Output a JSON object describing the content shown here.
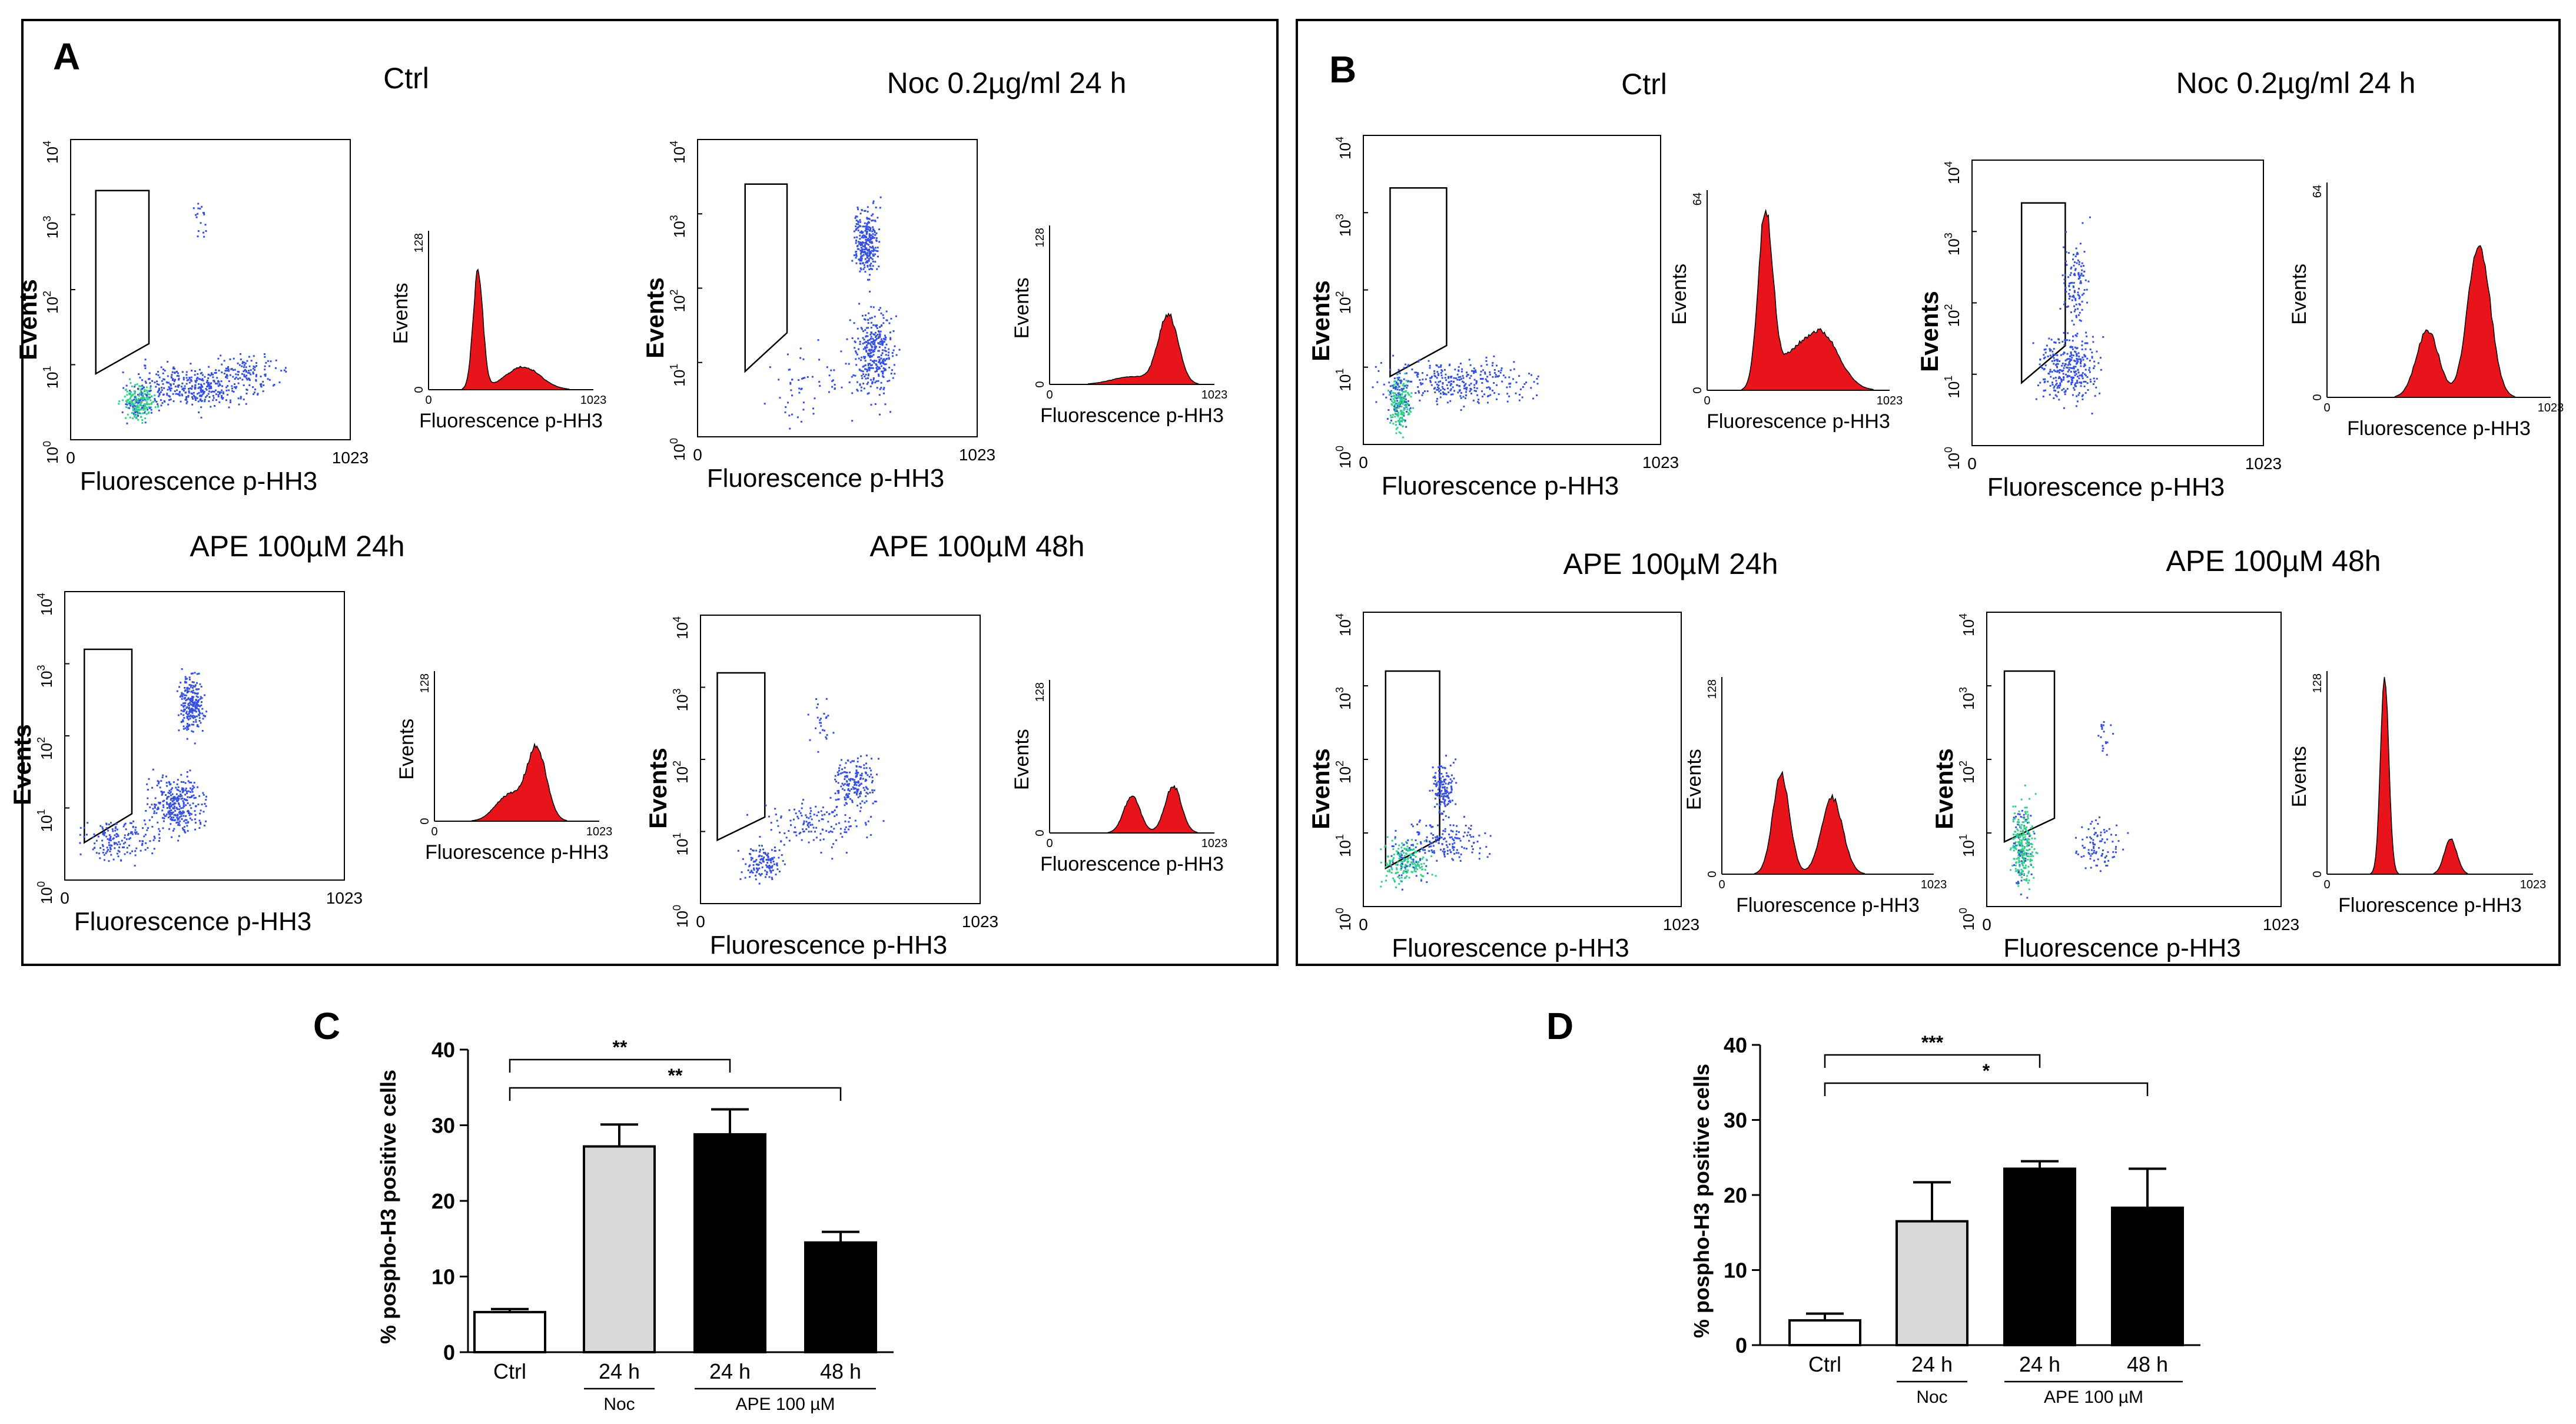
{
  "panels": [
    {
      "letter": "A",
      "subplots": [
        {
          "title": "Ctrl",
          "dot_ylabel": "Events",
          "dot_xlabel": "Fluorescence p-HH3",
          "x_min": "0",
          "x_max": "1023",
          "y_base": "10",
          "y_exps": [
            "0",
            "1",
            "2",
            "3",
            "4"
          ],
          "hist_ylabel": "Events",
          "hist_xlabel": "Fluorescence p-HH3",
          "hist_ymax": "128",
          "hist_xmin": "0",
          "hist_xmax": "1023"
        },
        {
          "title": "Noc  0.2µg/ml 24 h",
          "dot_ylabel": "Events",
          "dot_xlabel": "Fluorescence p-HH3",
          "x_min": "0",
          "x_max": "1023",
          "y_base": "10",
          "y_exps": [
            "0",
            "1",
            "2",
            "3",
            "4"
          ],
          "hist_ylabel": "Events",
          "hist_xlabel": "Fluorescence p-HH3",
          "hist_ymax": "128",
          "hist_xmin": "0",
          "hist_xmax": "1023"
        },
        {
          "title": "APE 100µM 24h",
          "dot_ylabel": "Events",
          "dot_xlabel": "Fluorescence p-HH3",
          "x_min": "0",
          "x_max": "1023",
          "y_base": "10",
          "y_exps": [
            "0",
            "1",
            "2",
            "3",
            "4"
          ],
          "hist_ylabel": "Events",
          "hist_xlabel": "Fluorescence p-HH3",
          "hist_ymax": "128",
          "hist_xmin": "0",
          "hist_xmax": "1023"
        },
        {
          "title": "APE 100µM 48h",
          "dot_ylabel": "Events",
          "dot_xlabel": "Fluorescence p-HH3",
          "x_min": "0",
          "x_max": "1023",
          "y_base": "10",
          "y_exps": [
            "0",
            "1",
            "2",
            "3",
            "4"
          ],
          "hist_ylabel": "Events",
          "hist_xlabel": "Fluorescence p-HH3",
          "hist_ymax": "128",
          "hist_xmin": "0",
          "hist_xmax": "1023"
        }
      ]
    },
    {
      "letter": "B",
      "subplots": [
        {
          "title": "Ctrl",
          "dot_ylabel": "Events",
          "dot_xlabel": "Fluorescence p-HH3",
          "x_min": "0",
          "x_max": "1023",
          "y_base": "10",
          "y_exps": [
            "0",
            "1",
            "2",
            "3",
            "4"
          ],
          "hist_ylabel": "Events",
          "hist_xlabel": "Fluorescence p-HH3",
          "hist_ymax": "64",
          "hist_xmin": "0",
          "hist_xmax": "1023"
        },
        {
          "title": "Noc  0.2µg/ml 24 h",
          "dot_ylabel": "Events",
          "dot_xlabel": "Fluorescence p-HH3",
          "x_min": "0",
          "x_max": "1023",
          "y_base": "10",
          "y_exps": [
            "0",
            "1",
            "2",
            "3",
            "4"
          ],
          "hist_ylabel": "Events",
          "hist_xlabel": "Fluorescence p-HH3",
          "hist_ymax": "64",
          "hist_xmin": "0",
          "hist_xmax": "1023"
        },
        {
          "title": "APE 100µM 24h",
          "dot_ylabel": "Events",
          "dot_xlabel": "Fluorescence p-HH3",
          "x_min": "0",
          "x_max": "1023",
          "y_base": "10",
          "y_exps": [
            "0",
            "1",
            "2",
            "3",
            "4"
          ],
          "hist_ylabel": "Events",
          "hist_xlabel": "Fluorescence p-HH3",
          "hist_ymax": "128",
          "hist_xmin": "0",
          "hist_xmax": "1023"
        },
        {
          "title": "APE 100µM 48h",
          "dot_ylabel": "Events",
          "dot_xlabel": "Fluorescence p-HH3",
          "x_min": "0",
          "x_max": "1023",
          "y_base": "10",
          "y_exps": [
            "0",
            "1",
            "2",
            "3",
            "4"
          ],
          "hist_ylabel": "Events",
          "hist_xlabel": "Fluorescence p-HH3",
          "hist_ymax": "128",
          "hist_xmin": "0",
          "hist_xmax": "1023"
        }
      ]
    }
  ],
  "colors": {
    "histogram_fill": "#e8141b",
    "dot_blue": "#3550e0",
    "dot_green": "#2fd08a",
    "noc_bar": "#d9d9d9",
    "ape_bar": "#000000",
    "ctrl_bar": "#ffffff"
  },
  "chart_data": [
    {
      "letter": "C",
      "type": "bar",
      "ylabel": "% pospho-H3 positive cells",
      "ylim": [
        0,
        40
      ],
      "yticks": [
        "0",
        "10",
        "20",
        "30",
        "40"
      ],
      "categories": [
        "Ctrl",
        "24 h",
        "24 h",
        "48 h"
      ],
      "values": [
        5.3,
        27.2,
        28.8,
        14.5
      ],
      "errors": [
        0.4,
        2.9,
        3.3,
        1.4
      ],
      "group_labels": [
        {
          "label": "Noc",
          "from": 1,
          "to": 1
        },
        {
          "label": "APE 100 µM",
          "from": 2,
          "to": 3
        }
      ],
      "significance": [
        {
          "from": 0,
          "to": 2,
          "label": "**"
        },
        {
          "from": 0,
          "to": 3,
          "label": "**"
        }
      ]
    },
    {
      "letter": "D",
      "type": "bar",
      "ylabel": "% pospho-H3 positive cells",
      "ylim": [
        0,
        40
      ],
      "yticks": [
        "0",
        "10",
        "20",
        "30",
        "40"
      ],
      "categories": [
        "Ctrl",
        "24 h",
        "24 h",
        "48 h"
      ],
      "values": [
        3.3,
        16.5,
        23.5,
        18.3
      ],
      "errors": [
        0.9,
        5.2,
        1.0,
        5.2
      ],
      "group_labels": [
        {
          "label": "Noc",
          "from": 1,
          "to": 1
        },
        {
          "label": "APE 100 µM",
          "from": 2,
          "to": 3
        }
      ],
      "significance": [
        {
          "from": 0,
          "to": 2,
          "label": "***"
        },
        {
          "from": 0,
          "to": 3,
          "label": "*"
        }
      ]
    }
  ]
}
